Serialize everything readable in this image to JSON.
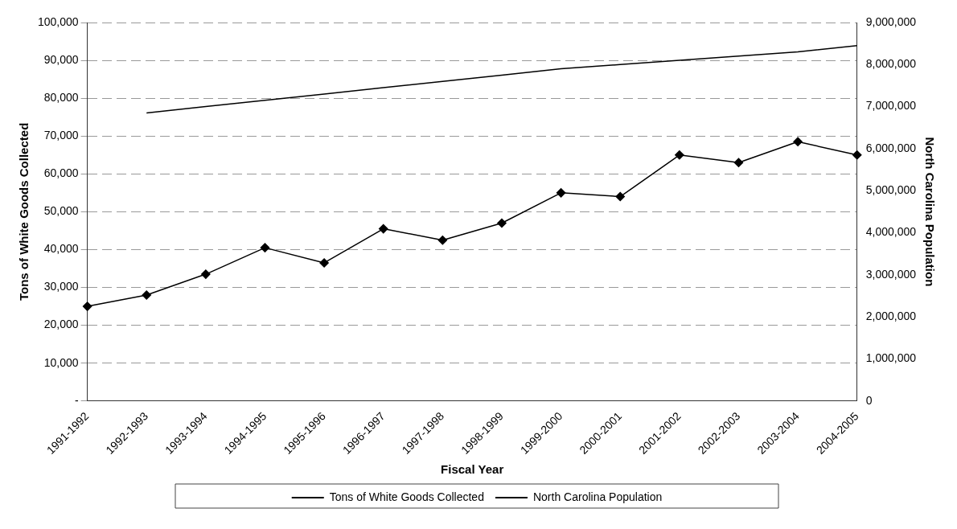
{
  "chart_data": {
    "type": "line",
    "xlabel": "Fiscal Year",
    "ylabel": "Tons of White Goods Collected",
    "y2label": "North Carolina Population",
    "categories": [
      "1991-1992",
      "1992-1993",
      "1993-1994",
      "1994-1995",
      "1995-1996",
      "1996-1997",
      "1997-1998",
      "1998-1999",
      "1999-2000",
      "2000-2001",
      "2001-2002",
      "2002-2003",
      "2003-2004",
      "2004-2005"
    ],
    "series": [
      {
        "name": "Tons of White Goods Collected",
        "color": "#000000",
        "marker": "diamond",
        "values": [
          25000,
          28000,
          33500,
          40500,
          36500,
          45500,
          42500,
          47000,
          55000,
          54000,
          65000,
          63000,
          68500,
          65000
        ]
      },
      {
        "name": "North Carolina Population",
        "color": "#000000",
        "marker": "none",
        "axis": "y2",
        "values": [
          null,
          6850000,
          7000000,
          7150000,
          7300000,
          7450000,
          7600000,
          7750000,
          7900000,
          8000000,
          8100000,
          8200000,
          8300000,
          8450000
        ]
      }
    ],
    "ylim": [
      0,
      100000
    ],
    "yticks": [
      {
        "value": 0,
        "label": "-"
      },
      {
        "value": 10000,
        "label": "10,000"
      },
      {
        "value": 20000,
        "label": "20,000"
      },
      {
        "value": 30000,
        "label": "30,000"
      },
      {
        "value": 40000,
        "label": "40,000"
      },
      {
        "value": 50000,
        "label": "50,000"
      },
      {
        "value": 60000,
        "label": "60,000"
      },
      {
        "value": 70000,
        "label": "70,000"
      },
      {
        "value": 80000,
        "label": "80,000"
      },
      {
        "value": 90000,
        "label": "90,000"
      },
      {
        "value": 100000,
        "label": "100,000"
      }
    ],
    "y2lim": [
      0,
      9000000
    ],
    "y2ticks": [
      0,
      {
        "value": 1000000,
        "label": "1,000,000"
      },
      {
        "value": 2000000,
        "label": "2,000,000"
      },
      {
        "value": 3000000,
        "label": "3,000,000"
      },
      {
        "value": 4000000,
        "label": "4,000,000"
      },
      {
        "value": 5000000,
        "label": "5,000,000"
      },
      {
        "value": 6000000,
        "label": "6,000,000"
      },
      {
        "value": 7000000,
        "label": "7,000,000"
      },
      {
        "value": 8000000,
        "label": "8,000,000"
      },
      {
        "value": 9000000,
        "label": "9,000,000"
      }
    ],
    "grid": "y",
    "legend": "bottom",
    "line_style": "solid"
  }
}
